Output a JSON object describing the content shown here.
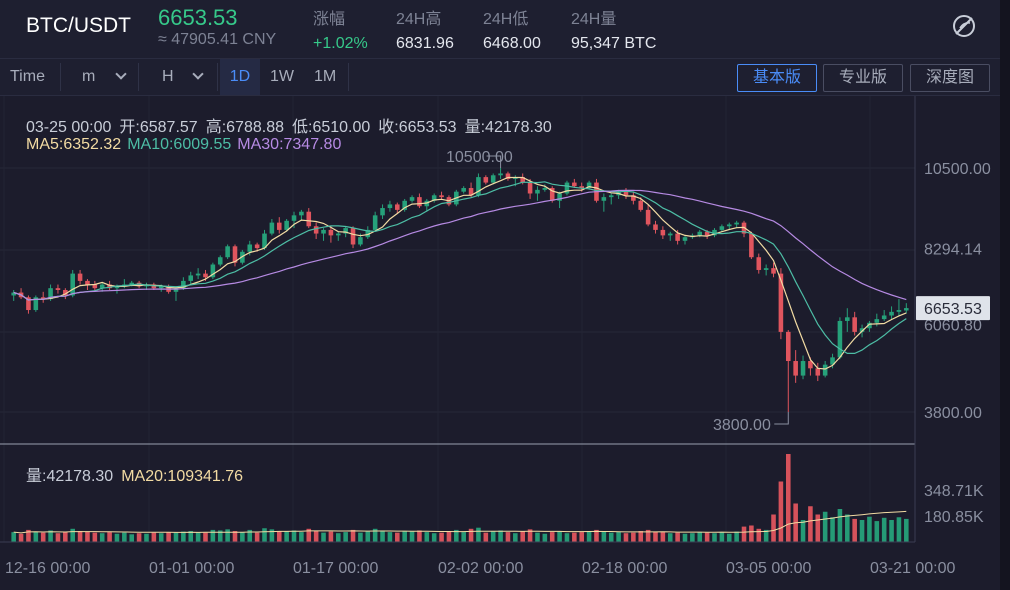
{
  "header": {
    "pair": "BTC/USDT",
    "price": "6653.53",
    "price_cny": "≈ 47905.41 CNY",
    "stats": [
      {
        "label": "涨幅",
        "value": "+1.02%",
        "up": true
      },
      {
        "label": "24H高",
        "value": "6831.96"
      },
      {
        "label": "24H低",
        "value": "6468.00"
      },
      {
        "label": "24H量",
        "value": "95,347 BTC"
      }
    ],
    "settings_icon": "theme-toggle-icon"
  },
  "toolbar": {
    "time_label": "Time",
    "minute_label": "m",
    "hour_label": "H",
    "intervals": [
      "1D",
      "1W",
      "1M"
    ],
    "active_interval": "1D",
    "views": [
      "基本版",
      "专业版",
      "深度图"
    ],
    "active_view": "基本版"
  },
  "info": {
    "date": "03-25 00:00",
    "open": "开:6587.57",
    "high": "高:6788.88",
    "low": "低:6510.00",
    "close": "收:6653.53",
    "volume": "量:42178.30",
    "ma5": "MA5:6352.32",
    "ma10": "MA10:6009.55",
    "ma30": "MA30:7347.80",
    "vol_value": "量:42178.30",
    "ma20": "MA20:109341.76"
  },
  "colors": {
    "up": "#26a17a",
    "down": "#e0555e",
    "ma5": "#f2dba3",
    "ma10": "#4dbda5",
    "ma30": "#b68ae3"
  },
  "chart_data": {
    "type": "candlestick",
    "symbol": "BTC/USDT",
    "interval": "1D",
    "price_axis_ticks": [
      3800.0,
      6060.8,
      8294.14,
      10500.0
    ],
    "price_axis_labels": [
      "3800.00",
      "6060.80",
      "8294.14",
      "10500.00"
    ],
    "last_price_label": "6653.53",
    "max_marker": "10500.00",
    "min_marker": "3800.00",
    "volume_axis_labels": [
      "348.71K",
      "180.85K"
    ],
    "x_labels": [
      "12-16 00:00",
      "01-01 00:00",
      "01-17 00:00",
      "02-02 00:00",
      "02-18 00:00",
      "03-05 00:00",
      "03-21 00:00"
    ],
    "ohlc": [
      [
        7000,
        7150,
        6850,
        7080
      ],
      [
        7080,
        7200,
        6900,
        6950
      ],
      [
        6950,
        7000,
        6500,
        6600
      ],
      [
        6600,
        7000,
        6550,
        6950
      ],
      [
        6950,
        7100,
        6800,
        6900
      ],
      [
        6900,
        7300,
        6850,
        7200
      ],
      [
        7200,
        7300,
        7050,
        7150
      ],
      [
        7150,
        7200,
        6900,
        7000
      ],
      [
        7000,
        7700,
        6950,
        7600
      ],
      [
        7600,
        7700,
        7300,
        7400
      ],
      [
        7400,
        7450,
        7150,
        7300
      ],
      [
        7300,
        7400,
        7100,
        7200
      ],
      [
        7200,
        7350,
        7100,
        7300
      ],
      [
        7300,
        7400,
        7150,
        7200
      ],
      [
        7200,
        7300,
        7050,
        7250
      ],
      [
        7250,
        7450,
        7200,
        7300
      ],
      [
        7300,
        7400,
        7250,
        7350
      ],
      [
        7350,
        7400,
        7200,
        7250
      ],
      [
        7250,
        7350,
        7150,
        7300
      ],
      [
        7300,
        7350,
        7150,
        7200
      ],
      [
        7200,
        7300,
        7100,
        7250
      ],
      [
        7250,
        7300,
        7050,
        7100
      ],
      [
        7100,
        7250,
        6850,
        7200
      ],
      [
        7200,
        7500,
        7150,
        7400
      ],
      [
        7400,
        7650,
        7300,
        7550
      ],
      [
        7550,
        7750,
        7450,
        7600
      ],
      [
        7600,
        7700,
        7400,
        7500
      ],
      [
        7500,
        7900,
        7450,
        7850
      ],
      [
        7850,
        8100,
        7800,
        8050
      ],
      [
        8050,
        8400,
        8000,
        8350
      ],
      [
        8350,
        8400,
        7800,
        7900
      ],
      [
        7900,
        8250,
        7850,
        8200
      ],
      [
        8200,
        8500,
        8100,
        8400
      ],
      [
        8400,
        8450,
        8200,
        8300
      ],
      [
        8300,
        8800,
        8250,
        8700
      ],
      [
        8700,
        9100,
        8650,
        9000
      ],
      [
        9000,
        9150,
        8700,
        8800
      ],
      [
        8800,
        9100,
        8750,
        9050
      ],
      [
        9050,
        9300,
        8850,
        9200
      ],
      [
        9200,
        9350,
        9050,
        9300
      ],
      [
        9300,
        9400,
        8850,
        8900
      ],
      [
        8900,
        9000,
        8550,
        8700
      ],
      [
        8700,
        8850,
        8500,
        8800
      ],
      [
        8800,
        8900,
        8450,
        8650
      ],
      [
        8650,
        8750,
        8500,
        8700
      ],
      [
        8700,
        8900,
        8600,
        8850
      ],
      [
        8850,
        8900,
        8300,
        8400
      ],
      [
        8400,
        8700,
        8350,
        8600
      ],
      [
        8600,
        8900,
        8550,
        8800
      ],
      [
        8800,
        9300,
        8750,
        9200
      ],
      [
        9200,
        9500,
        9100,
        9400
      ],
      [
        9400,
        9600,
        9300,
        9500
      ],
      [
        9500,
        9550,
        9250,
        9350
      ],
      [
        9350,
        9650,
        9300,
        9600
      ],
      [
        9600,
        9750,
        9550,
        9700
      ],
      [
        9700,
        9800,
        9400,
        9450
      ],
      [
        9450,
        9650,
        9300,
        9600
      ],
      [
        9600,
        9800,
        9550,
        9750
      ],
      [
        9750,
        9850,
        9650,
        9700
      ],
      [
        9700,
        9750,
        9450,
        9500
      ],
      [
        9500,
        9900,
        9450,
        9850
      ],
      [
        9850,
        10000,
        9800,
        9950
      ],
      [
        9950,
        10100,
        9700,
        9750
      ],
      [
        9750,
        10350,
        9700,
        10250
      ],
      [
        10250,
        10300,
        10050,
        10100
      ],
      [
        10100,
        10350,
        10050,
        10300
      ],
      [
        10300,
        10500,
        10200,
        10350
      ],
      [
        10350,
        10400,
        10150,
        10200
      ],
      [
        10200,
        10300,
        10000,
        10250
      ],
      [
        10250,
        10350,
        10050,
        10100
      ],
      [
        10100,
        10200,
        9650,
        9800
      ],
      [
        9800,
        10000,
        9600,
        9900
      ],
      [
        9900,
        10050,
        9850,
        9950
      ],
      [
        9950,
        10000,
        9550,
        9600
      ],
      [
        9600,
        9850,
        9400,
        9800
      ],
      [
        9800,
        10150,
        9750,
        10100
      ],
      [
        10100,
        10200,
        9950,
        10000
      ],
      [
        10000,
        10100,
        9850,
        9950
      ],
      [
        9950,
        10150,
        9900,
        10100
      ],
      [
        10100,
        10200,
        9550,
        9600
      ],
      [
        9600,
        9800,
        9300,
        9700
      ],
      [
        9700,
        9800,
        9500,
        9750
      ],
      [
        9750,
        9900,
        9650,
        9850
      ],
      [
        9850,
        9950,
        9650,
        9750
      ],
      [
        9750,
        9850,
        9500,
        9600
      ],
      [
        9600,
        9700,
        9300,
        9350
      ],
      [
        9350,
        9500,
        8900,
        8950
      ],
      [
        8950,
        9050,
        8700,
        8800
      ],
      [
        8800,
        8900,
        8550,
        8650
      ],
      [
        8650,
        8750,
        8500,
        8700
      ],
      [
        8700,
        8800,
        8400,
        8500
      ],
      [
        8500,
        8650,
        8400,
        8600
      ],
      [
        8600,
        8700,
        8550,
        8650
      ],
      [
        8650,
        8800,
        8600,
        8750
      ],
      [
        8750,
        8800,
        8550,
        8650
      ],
      [
        8650,
        8850,
        8600,
        8800
      ],
      [
        8800,
        8950,
        8750,
        8900
      ],
      [
        8900,
        9000,
        8800,
        8950
      ],
      [
        8950,
        9050,
        8850,
        9000
      ],
      [
        9000,
        9050,
        8600,
        8700
      ],
      [
        8700,
        8750,
        8000,
        8050
      ],
      [
        8050,
        8150,
        7600,
        7700
      ],
      [
        7700,
        7850,
        7550,
        7750
      ],
      [
        7750,
        7900,
        7500,
        7600
      ],
      [
        7600,
        7750,
        5800,
        6000
      ],
      [
        6000,
        6050,
        3800,
        5200
      ],
      [
        5200,
        5500,
        4600,
        4800
      ],
      [
        4800,
        5350,
        4700,
        5200
      ],
      [
        5200,
        5300,
        4800,
        5000
      ],
      [
        5000,
        5150,
        4650,
        4800
      ],
      [
        4800,
        5200,
        4750,
        5100
      ],
      [
        5100,
        5400,
        5000,
        5300
      ],
      [
        5300,
        6400,
        5250,
        6300
      ],
      [
        6300,
        6650,
        6000,
        6400
      ],
      [
        6400,
        6550,
        5900,
        6000
      ],
      [
        6000,
        6200,
        5850,
        6100
      ],
      [
        6100,
        6300,
        6000,
        6250
      ],
      [
        6250,
        6500,
        6150,
        6350
      ],
      [
        6350,
        6600,
        6300,
        6450
      ],
      [
        6450,
        6700,
        6350,
        6550
      ],
      [
        6550,
        6900,
        6450,
        6600
      ],
      [
        6587.57,
        6788.88,
        6510.0,
        6653.53
      ]
    ],
    "volume": [
      18,
      15,
      22,
      19,
      17,
      21,
      16,
      18,
      24,
      20,
      19,
      17,
      16,
      18,
      15,
      17,
      14,
      16,
      15,
      17,
      16,
      18,
      17,
      19,
      20,
      18,
      17,
      22,
      21,
      23,
      20,
      18,
      22,
      17,
      25,
      23,
      20,
      19,
      21,
      18,
      24,
      20,
      17,
      19,
      16,
      18,
      22,
      17,
      19,
      24,
      21,
      18,
      17,
      20,
      19,
      21,
      18,
      16,
      17,
      19,
      22,
      18,
      24,
      26,
      17,
      19,
      21,
      18,
      16,
      20,
      23,
      17,
      15,
      18,
      19,
      16,
      17,
      18,
      20,
      22,
      19,
      17,
      18,
      16,
      17,
      20,
      22,
      19,
      18,
      16,
      17,
      15,
      16,
      18,
      17,
      16,
      18,
      15,
      19,
      28,
      30,
      24,
      22,
      50,
      110,
      160,
      70,
      40,
      65,
      50,
      55,
      45,
      60,
      50,
      42,
      40,
      46,
      38,
      44,
      40,
      45,
      42
    ]
  }
}
